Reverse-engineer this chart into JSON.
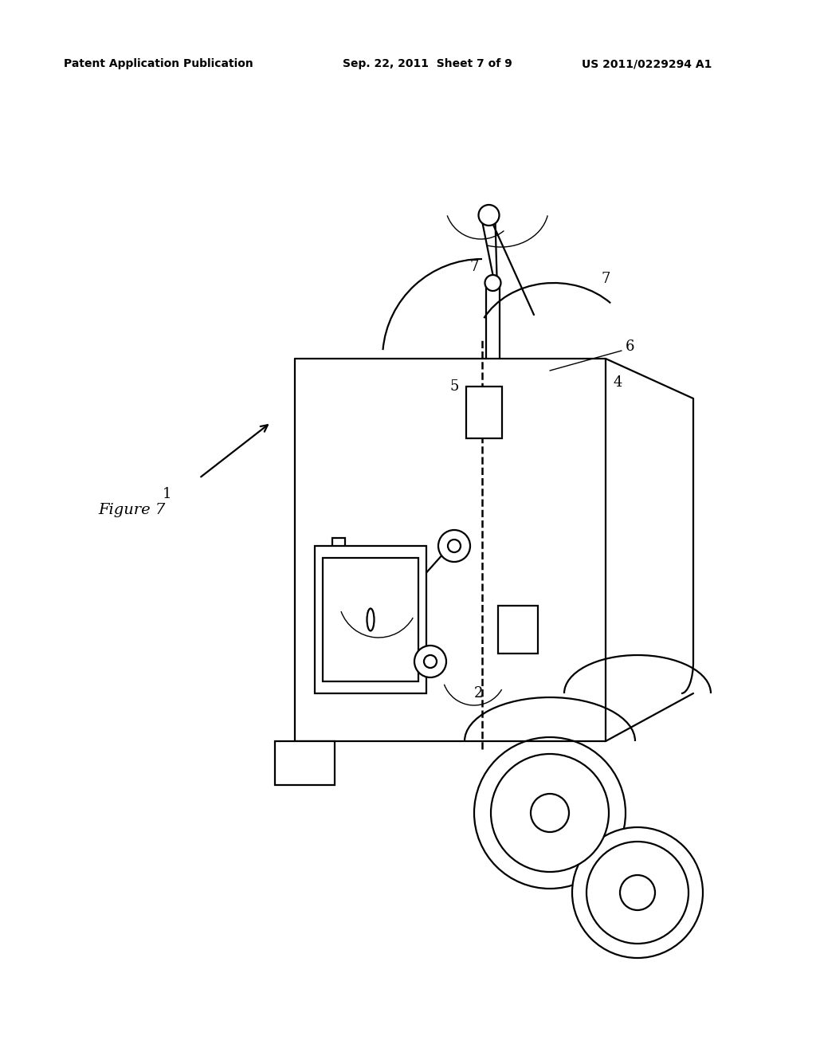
{
  "bg_color": "#ffffff",
  "line_color": "#000000",
  "header_left": "Patent Application Publication",
  "header_center": "Sep. 22, 2011  Sheet 7 of 9",
  "header_right": "US 2011/0229294 A1",
  "figure_label": "Figure 7",
  "lw": 1.6
}
